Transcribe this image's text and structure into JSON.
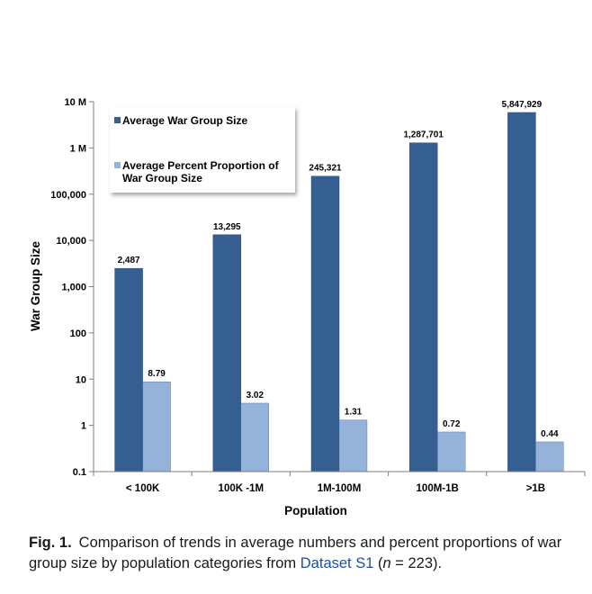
{
  "chart_data": {
    "type": "bar",
    "categories": [
      "< 100K",
      "100K -1M",
      "1M-100M",
      "100M-1B",
      ">1B"
    ],
    "series": [
      {
        "name": "Average War Group Size",
        "values": [
          2487,
          13295,
          245321,
          1287701,
          5847929
        ],
        "labels": [
          "2,487",
          "13,295",
          "245,321",
          "1,287,701",
          "5,847,929"
        ],
        "color": "#355f91"
      },
      {
        "name": "Average Percent Proportion of War Group Size",
        "values": [
          8.79,
          3.02,
          1.31,
          0.72,
          0.44
        ],
        "labels": [
          "8.79",
          "3.02",
          "1.31",
          "0.72",
          "0.44"
        ],
        "color": "#95b2d9"
      }
    ],
    "ylabel": "War Group Size",
    "xlabel": "Population",
    "yscale": "log",
    "ylim": [
      0.1,
      10000000
    ],
    "yticks": [
      0.1,
      1,
      10,
      100,
      1000,
      10000,
      100000,
      1000000,
      10000000
    ],
    "ytick_labels": [
      "0.1",
      "1",
      "10",
      "100",
      "1,000",
      "10,000",
      "100,000",
      "1 M",
      "10 M"
    ],
    "grid": false,
    "legend_position": "top-left"
  },
  "caption": {
    "label": "Fig. 1.",
    "text_before": "Comparison of trends in average numbers and percent proportions of war group size by population categories from ",
    "link_text": "Dataset S1",
    "text_after_open": " (",
    "n_var": "n",
    "text_after_close": " = 223)."
  }
}
